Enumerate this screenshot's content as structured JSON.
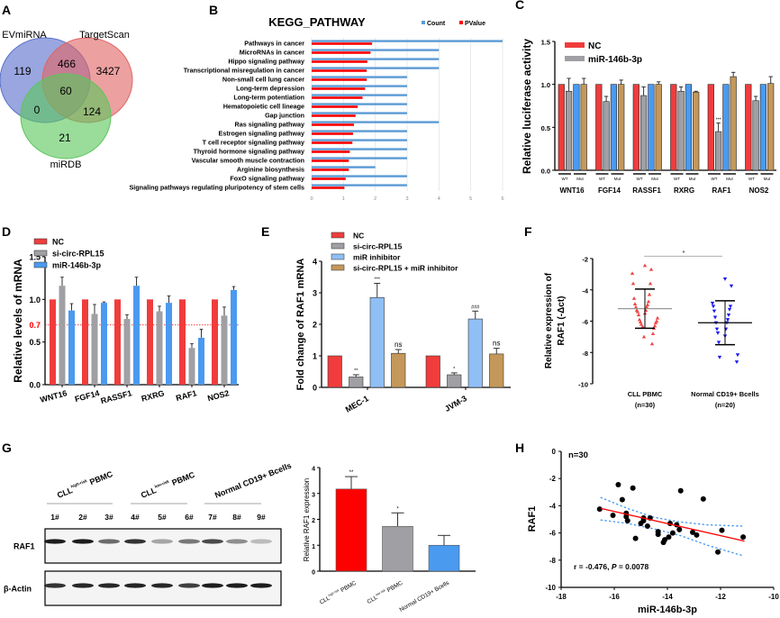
{
  "panel_labels": [
    "A",
    "B",
    "C",
    "D",
    "E",
    "F",
    "G",
    "H"
  ],
  "chart_data": [
    {
      "panel": "A",
      "type": "venn",
      "sets": [
        {
          "name": "EVmiRNA",
          "color": "#5a6fcb"
        },
        {
          "name": "TargetScan",
          "color": "#e06565"
        },
        {
          "name": "miRDB",
          "color": "#5cc65c"
        }
      ],
      "regions": [
        {
          "sets": [
            "EVmiRNA"
          ],
          "value": "119"
        },
        {
          "sets": [
            "EVmiRNA",
            "TargetScan"
          ],
          "value": "466"
        },
        {
          "sets": [
            "TargetScan"
          ],
          "value": "3427"
        },
        {
          "sets": [
            "EVmiRNA",
            "TargetScan",
            "miRDB"
          ],
          "value": "60"
        },
        {
          "sets": [
            "EVmiRNA",
            "miRDB"
          ],
          "value": "0"
        },
        {
          "sets": [
            "TargetScan",
            "miRDB"
          ],
          "value": "124"
        },
        {
          "sets": [
            "miRDB"
          ],
          "value": "21"
        }
      ]
    },
    {
      "panel": "B",
      "type": "bar",
      "orientation": "horizontal",
      "title": "KEGG_PATHWAY",
      "categories": [
        "Pathways in cancer",
        "MicroRNAs in cancer",
        "Hippo signaling pathway",
        "Transcriptional misregulation in cancer",
        "Non-small cell lung cancer",
        "Long-term depression",
        "Long-term potentiation",
        "Hematopoietic cell lineage",
        "Gap junction",
        "Ras signaling pathway",
        "Estrogen signaling pathway",
        "T cell receptor signaling pathway",
        "Thyroid hormone signaling pathway",
        "Vascular smooth muscle contraction",
        "Arginine biosynthesis",
        "FoxO signaling pathway",
        "Signaling pathways regulating pluripotency of stem cells"
      ],
      "series": [
        {
          "name": "Count",
          "color": "#5b9bd5",
          "values": [
            6,
            4,
            4,
            4,
            3,
            3,
            3,
            3,
            3,
            4,
            3,
            3,
            3,
            3,
            2,
            3,
            3
          ]
        },
        {
          "name": "PValue",
          "color": "#ff0000",
          "values": [
            1.9,
            1.85,
            1.75,
            1.73,
            1.73,
            1.68,
            1.6,
            1.45,
            1.38,
            1.33,
            1.3,
            1.28,
            1.2,
            1.17,
            1.17,
            1.07,
            1.03
          ]
        }
      ],
      "xlim": [
        0,
        6
      ],
      "xticks": [
        "0",
        "1",
        "2",
        "3",
        "4",
        "5",
        "6"
      ],
      "grid": true,
      "legend": "top-right"
    },
    {
      "panel": "C",
      "type": "bar",
      "ylabel": "Relative luciferase activity",
      "ylim": [
        0,
        1.5
      ],
      "yticks": [
        "0.0",
        "0.5",
        "1.0",
        "1.5"
      ],
      "categories": [
        "WNT16",
        "FGF14",
        "RASSF1",
        "RXRG",
        "RAF1",
        "NOS2"
      ],
      "subgroup_labels": [
        "WT",
        "Mut"
      ],
      "legend_entries": [
        {
          "name": "NC",
          "color": "#f03c3c"
        },
        {
          "name": "miR-146b-3p",
          "color": "#a0a0a4"
        }
      ],
      "series": [
        {
          "construct": "WT",
          "condition": "NC",
          "color": "#f03c3c",
          "values": [
            1,
            1,
            1,
            1,
            1,
            1
          ],
          "errors": [
            0,
            0,
            0,
            0,
            0,
            0
          ]
        },
        {
          "construct": "WT",
          "condition": "miR-146b-3p",
          "color": "#a0a0a4",
          "values": [
            0.92,
            0.8,
            0.87,
            0.92,
            0.45,
            0.81
          ],
          "errors": [
            0.15,
            0.06,
            0.1,
            0.05,
            0.1,
            0.05
          ]
        },
        {
          "construct": "Mut",
          "condition": "NC",
          "color": "#4a9af0",
          "values": [
            1,
            1,
            1,
            1,
            1,
            1
          ],
          "errors": [
            0,
            0,
            0,
            0,
            0,
            0
          ]
        },
        {
          "construct": "Mut",
          "condition": "miR-146b-3p",
          "color": "#c4985a",
          "values": [
            1,
            1,
            1,
            0.91,
            1.09,
            1.01
          ],
          "errors": [
            0.07,
            0.05,
            0.03,
            0.01,
            0.05,
            0.08
          ]
        }
      ],
      "annotations": [
        {
          "category": "RAF1",
          "series": 1,
          "text": "***"
        }
      ]
    },
    {
      "panel": "D",
      "type": "bar",
      "ylabel": "Relative  levels of mRNA",
      "ylim": [
        0,
        1.5
      ],
      "yticks": [
        "0.0",
        "0.5",
        "1.0",
        "1.5"
      ],
      "reference_line": {
        "value": 0.7,
        "label": "0.7",
        "color": "#ff0000"
      },
      "categories": [
        "WNT16",
        "FGF14",
        "RASSF1",
        "RXRG",
        "RAF1",
        "NOS2"
      ],
      "series": [
        {
          "name": "NC",
          "color": "#f03c3c",
          "values": [
            1,
            1,
            1,
            1,
            1,
            1
          ],
          "errors": [
            0,
            0,
            0,
            0,
            0,
            0
          ]
        },
        {
          "name": "si-circ-RPL15",
          "color": "#a0a0a4",
          "values": [
            1.16,
            0.83,
            0.77,
            0.86,
            0.43,
            0.81
          ],
          "errors": [
            0.1,
            0.11,
            0.05,
            0.06,
            0.05,
            0.1
          ]
        },
        {
          "name": "miR-146b-3p",
          "color": "#4a9af0",
          "values": [
            0.87,
            0.96,
            1.16,
            0.96,
            0.55,
            1.11
          ],
          "errors": [
            0.08,
            0.01,
            0.1,
            0.08,
            0.1,
            0.04
          ]
        }
      ],
      "legend": "top"
    },
    {
      "panel": "E",
      "type": "bar",
      "ylabel": "Fold change of RAF1 mRNA",
      "ylim": [
        0,
        4
      ],
      "yticks": [
        "0",
        "1",
        "2",
        "3",
        "4"
      ],
      "categories": [
        "MEC-1",
        "JVM-3"
      ],
      "series": [
        {
          "name": "NC",
          "color": "#f03c3c",
          "values": [
            1,
            1
          ],
          "errors": [
            0,
            0
          ],
          "labels": [
            "",
            ""
          ]
        },
        {
          "name": "si-circ-RPL15",
          "color": "#a0a0a4",
          "values": [
            0.33,
            0.4
          ],
          "errors": [
            0.07,
            0.06
          ],
          "labels": [
            "**",
            "*"
          ]
        },
        {
          "name": "miR inhibitor",
          "color": "#8fbff5",
          "values": [
            2.85,
            2.17
          ],
          "errors": [
            0.45,
            0.25
          ],
          "labels": [
            "***",
            "###"
          ]
        },
        {
          "name": "si-circ-RPL15 + miR inhibitor",
          "color": "#c4985a",
          "values": [
            1.08,
            1.06
          ],
          "errors": [
            0.12,
            0.18
          ],
          "labels": [
            "ns",
            "ns"
          ]
        }
      ],
      "legend": "top"
    },
    {
      "panel": "F",
      "type": "scatter",
      "ylabel_lines": [
        "Relative expression of",
        "RAF1 (-Δct)"
      ],
      "ylim": [
        -10,
        -2
      ],
      "yticks": [
        "-10",
        "-8",
        "-6",
        "-4",
        "-2"
      ],
      "groups": [
        {
          "label": "CLL PBMC",
          "n_label": "(n=30)",
          "color": "#f04848",
          "marker": "triangle-up",
          "mean": -5.2,
          "sd": 1.25,
          "values": [
            -2.45,
            -2.7,
            -2.95,
            -3.6,
            -3.6,
            -4.3,
            -4.55,
            -4.75,
            -4.9,
            -4.95,
            -5.1,
            -5.1,
            -5.3,
            -5.3,
            -5.4,
            -5.5,
            -5.6,
            -5.8,
            -5.9,
            -6.0,
            -6.05,
            -6.1,
            -6.2,
            -6.3,
            -6.4,
            -6.45,
            -6.4,
            -6.8,
            -7.0,
            -7.45
          ]
        },
        {
          "label": "Normal CD19+ Bcells",
          "n_label": "(n=20)",
          "color": "#1a1aee",
          "marker": "triangle-down",
          "mean": -6.1,
          "sd": 1.4,
          "values": [
            -3.3,
            -3.75,
            -4.85,
            -5.05,
            -5.05,
            -5.25,
            -5.35,
            -5.6,
            -5.75,
            -5.9,
            -6.1,
            -6.1,
            -6.5,
            -6.5,
            -6.75,
            -6.95,
            -7.35,
            -8.15,
            -8.3,
            -8.6
          ]
        }
      ],
      "significance": "*"
    },
    {
      "panel": "G",
      "type": "bar",
      "ylabel": "Relative RAF1 expression",
      "ylim": [
        0,
        4
      ],
      "yticks": [
        "0",
        "1",
        "2",
        "3",
        "4"
      ],
      "categories": [
        {
          "main": "CLL",
          "sup": "high-risk",
          "tail": " PBMC"
        },
        {
          "main": "CLL",
          "sup": "low-risk",
          "tail": " PBMC"
        },
        {
          "main": "Normal CD19+ Bcells",
          "sup": "",
          "tail": ""
        }
      ],
      "values": [
        3.17,
        1.73,
        1.0
      ],
      "errors": [
        0.48,
        0.52,
        0.38
      ],
      "colors": [
        "#ff0000",
        "#a0a0a4",
        "#4a9af0"
      ],
      "labels": [
        "**",
        "*",
        ""
      ],
      "blot": {
        "groups": [
          {
            "main": "CLL",
            "sup": "high-risk",
            "tail": " PBMC"
          },
          {
            "main": "CLL",
            "sup": "low-risk",
            "tail": " PBMC"
          },
          {
            "main": "Normal CD19+ Bcells",
            "sup": "",
            "tail": ""
          }
        ],
        "lanes": [
          "1#",
          "2#",
          "3#",
          "4#",
          "5#",
          "6#",
          "7#",
          "8#",
          "9#"
        ],
        "rows": [
          {
            "label": "RAF1",
            "band_intensity": [
              0.95,
              0.95,
              0.6,
              0.85,
              0.35,
              0.55,
              0.75,
              0.45,
              0.25
            ]
          },
          {
            "label": "β-Actin",
            "band_intensity": [
              0.85,
              0.9,
              0.9,
              0.92,
              0.9,
              0.8,
              0.95,
              0.95,
              0.95
            ]
          }
        ]
      }
    },
    {
      "panel": "H",
      "type": "scatter",
      "xlabel": "miR-146b-3p",
      "ylabel": "RAF1",
      "xlim": [
        -18,
        -10
      ],
      "ylim": [
        -10,
        0
      ],
      "xticks": [
        "-18",
        "-16",
        "-14",
        "-12",
        "-10"
      ],
      "yticks": [
        "-10",
        "-8",
        "-6",
        "-4",
        "-2",
        "0"
      ],
      "n_label": "n=30",
      "stat_prefix": "r = -0.476,  ",
      "stat_p": "P",
      "stat_suffix": " = 0.0078",
      "points": [
        [
          -16.55,
          -4.25
        ],
        [
          -16.05,
          -4.7
        ],
        [
          -15.85,
          -2.45
        ],
        [
          -15.7,
          -3.55
        ],
        [
          -15.55,
          -4.55
        ],
        [
          -15.55,
          -4.8
        ],
        [
          -15.5,
          -5.1
        ],
        [
          -15.3,
          -2.7
        ],
        [
          -15.2,
          -6.4
        ],
        [
          -15.0,
          -5.3
        ],
        [
          -14.9,
          -5.1
        ],
        [
          -14.9,
          -4.9
        ],
        [
          -14.75,
          -5.5
        ],
        [
          -14.65,
          -4.9
        ],
        [
          -14.35,
          -5.9
        ],
        [
          -14.35,
          -6.1
        ],
        [
          -14.15,
          -6.7
        ],
        [
          -14.1,
          -6.5
        ],
        [
          -13.95,
          -6.3
        ],
        [
          -13.9,
          -5.3
        ],
        [
          -13.8,
          -6.0
        ],
        [
          -13.65,
          -5.4
        ],
        [
          -13.55,
          -5.75
        ],
        [
          -13.5,
          -2.9
        ],
        [
          -13.05,
          -5.95
        ],
        [
          -12.9,
          -6.15
        ],
        [
          -12.65,
          -3.5
        ],
        [
          -12.1,
          -7.4
        ],
        [
          -11.95,
          -5.8
        ],
        [
          -11.15,
          -6.3
        ]
      ],
      "fit_line": [
        [
          -16.5,
          -4.2
        ],
        [
          -11.1,
          -6.6
        ]
      ],
      "ci_upper": [
        [
          -16.5,
          -3.4
        ],
        [
          -15.5,
          -4.2
        ],
        [
          -14.5,
          -4.85
        ],
        [
          -13.5,
          -5.2
        ],
        [
          -12.5,
          -5.4
        ],
        [
          -11.2,
          -5.5
        ]
      ],
      "ci_lower": [
        [
          -16.5,
          -5.05
        ],
        [
          -15.5,
          -5.3
        ],
        [
          -14.5,
          -5.7
        ],
        [
          -13.5,
          -6.2
        ],
        [
          -12.5,
          -6.9
        ],
        [
          -11.2,
          -7.65
        ]
      ],
      "line_color": "#ff0000",
      "ci_color": "#4a9af0"
    }
  ]
}
